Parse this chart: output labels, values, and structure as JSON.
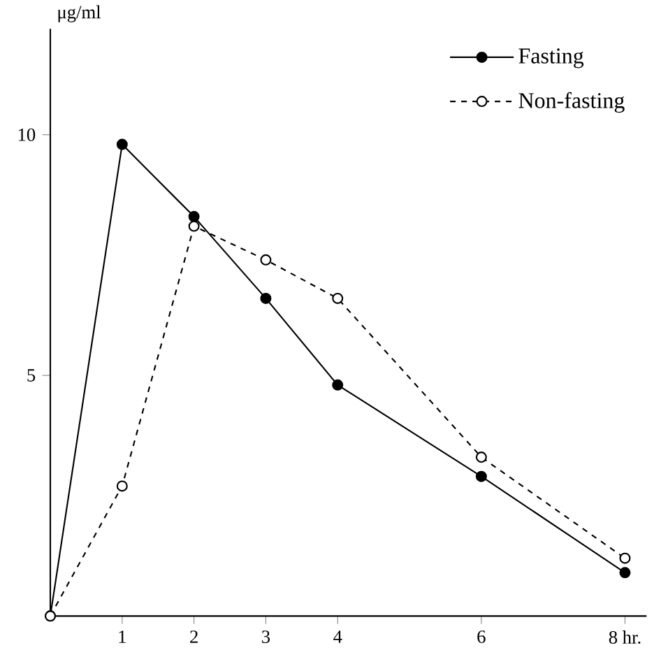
{
  "chart_data": {
    "type": "line",
    "ylabel": "μg/ml",
    "x": [
      0,
      1,
      2,
      3,
      4,
      6,
      8
    ],
    "series": [
      {
        "name": "Fasting",
        "color": "#000000",
        "line_style": "solid",
        "values": [
          0,
          9.8,
          8.3,
          6.6,
          4.8,
          2.9,
          0.9
        ]
      },
      {
        "name": "Non-fasting",
        "color": "#000000",
        "line_style": "dashed",
        "values": [
          0,
          2.7,
          8.1,
          7.4,
          6.6,
          3.3,
          1.2
        ]
      }
    ],
    "xlim": [
      0,
      8.3
    ],
    "ylim": [
      0,
      12.2
    ],
    "xticks": [
      1,
      2,
      3,
      4,
      6,
      {
        "value": 8,
        "label": "8 hr."
      }
    ],
    "yticks": [
      5,
      10
    ],
    "marker": "circle",
    "legend": "top right"
  }
}
